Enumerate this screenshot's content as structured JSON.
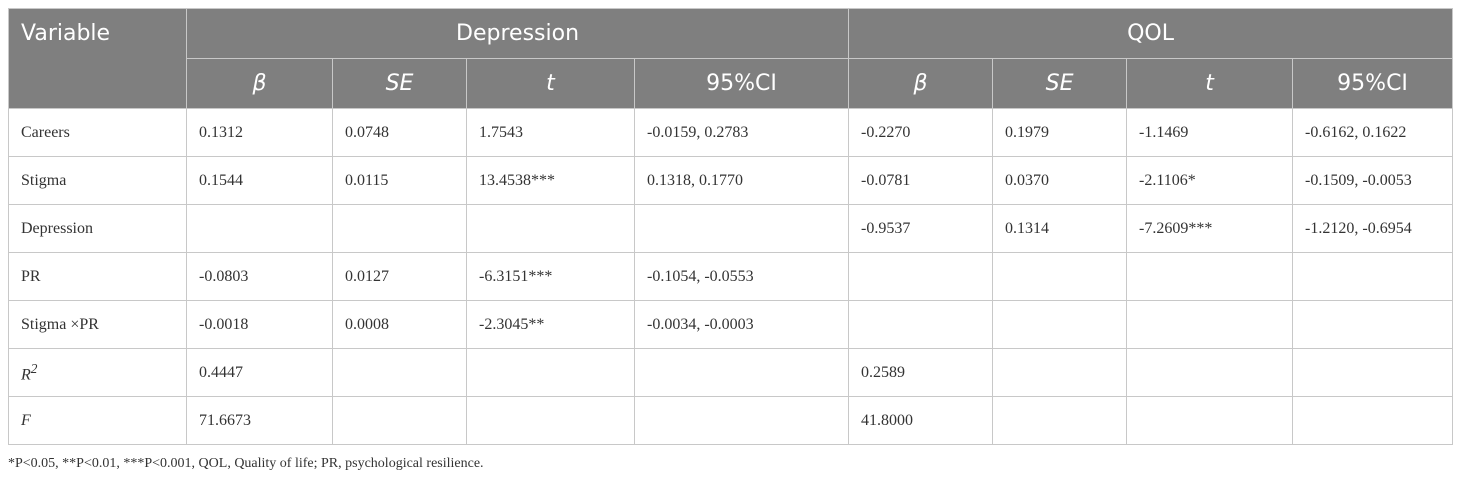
{
  "table": {
    "header1": [
      "Variable",
      "Depression",
      "QOL"
    ],
    "header2": [
      "β",
      "SE",
      "t",
      "95%CI",
      "β",
      "SE",
      "t",
      "95%CI"
    ],
    "rows": [
      [
        {
          "text": "Careers"
        },
        "0.1312",
        "0.0748",
        "1.7543",
        "-0.0159, 0.2783",
        "-0.2270",
        "0.1979",
        "-1.1469",
        "-0.6162, 0.1622"
      ],
      [
        {
          "text": "Stigma"
        },
        "0.1544",
        "0.0115",
        "13.4538***",
        "0.1318, 0.1770",
        "-0.0781",
        "0.0370",
        "-2.1106*",
        "-0.1509, -0.0053"
      ],
      [
        {
          "text": "Depression"
        },
        null,
        null,
        null,
        null,
        "-0.9537",
        "0.1314",
        "-7.2609***",
        "-1.2120, -0.6954"
      ],
      [
        {
          "text": "PR"
        },
        "-0.0803",
        "0.0127",
        "-6.3151***",
        "-0.1054, -0.0553",
        null,
        null,
        null,
        null
      ],
      [
        {
          "text": "Stigma ×PR"
        },
        "-0.0018",
        "0.0008",
        "-2.3045**",
        "-0.0034, -0.0003",
        null,
        null,
        null,
        null
      ],
      [
        {
          "text": "R",
          "sup": "2"
        },
        "0.4447",
        null,
        null,
        null,
        "0.2589",
        null,
        null,
        null
      ],
      [
        {
          "text": "F"
        },
        "71.6673",
        null,
        null,
        null,
        "41.8000",
        null,
        null,
        null
      ]
    ],
    "footnote": "*P<0.05, **P<0.01, ***P<0.001, QOL, Quality of life; PR, psychological resilience."
  }
}
